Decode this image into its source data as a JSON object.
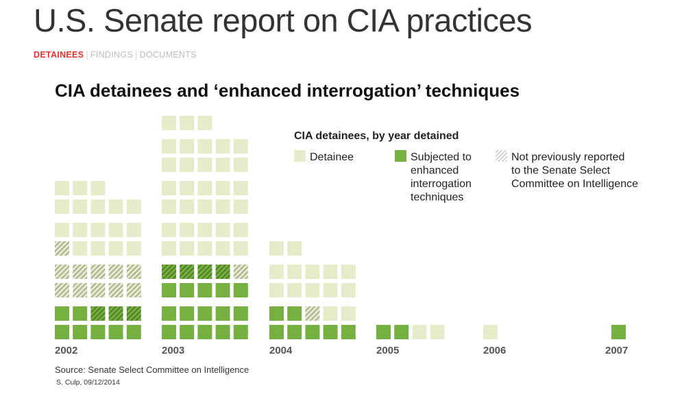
{
  "header": {
    "title": "U.S. Senate report on CIA practices",
    "nav": [
      {
        "label": "DETAINEES",
        "active": true
      },
      {
        "label": "FINDINGS",
        "active": false
      },
      {
        "label": "DOCUMENTS",
        "active": false
      }
    ]
  },
  "chart_data": {
    "type": "waffle",
    "title": "CIA detainees and ‘enhanced interrogation’ techniques",
    "subtitle": "CIA detainees, by year detained",
    "legend": [
      {
        "key": "D",
        "label_lines": [
          "Detainee"
        ]
      },
      {
        "key": "E",
        "label_lines": [
          "Subjected to",
          "enhanced",
          "interrogation",
          "techniques"
        ]
      },
      {
        "key": "N",
        "label_lines": [
          "Not previously reported",
          "to the Senate Select",
          "Committee on Intelligence"
        ]
      }
    ],
    "categories": [
      "2002",
      "2003",
      "2004",
      "2005",
      "2006",
      "2007"
    ],
    "cell_codes": {
      "D": "Detainee",
      "E": "Subjected to enhanced interrogation techniques",
      "N": "Not previously reported",
      "X": "Subjected to enhanced interrogation techniques and not previously reported"
    },
    "rows_bottom_up": [
      [
        "EEEEE",
        "EEXXX",
        "NNNNN",
        "NNNNN",
        "NDDDD",
        "DDDDD",
        "DDDDD",
        "DDD"
      ],
      [
        "EEEEE",
        "EEEEE",
        "EEEEE",
        "XXXXN",
        "DDDDD",
        "DDDDD",
        "DDDDD",
        "DDDDD",
        "DDDDD",
        "DDDDD",
        "DDD"
      ],
      [
        "EEEEE",
        "EENDD",
        "DDDDD",
        "DDDDD",
        "DD"
      ],
      [
        "EEDD"
      ],
      [
        "D"
      ],
      [
        "E"
      ]
    ],
    "totals": [
      38,
      53,
      22,
      4,
      1,
      1
    ],
    "colors": {
      "detainee": "#e5ecca",
      "enhanced": "#76b041",
      "hatch_light": "#a9ae95",
      "hatch_dark": "#4d7f26"
    }
  },
  "footer": {
    "source": "Source: Senate Select Committee on Intelligence",
    "credit": "S. Culp, 09/12/2014"
  }
}
